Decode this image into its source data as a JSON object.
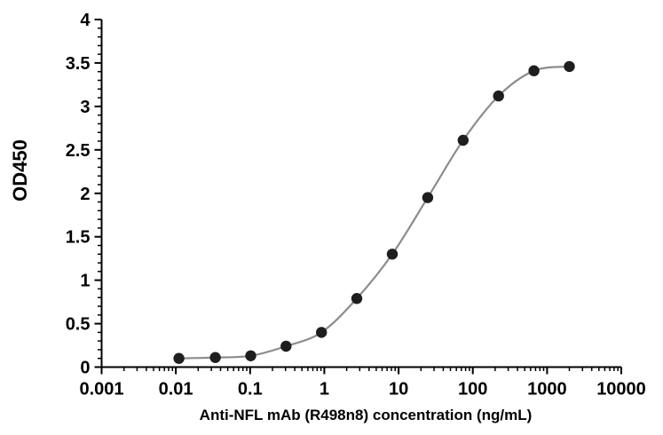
{
  "chart_data": {
    "type": "scatter",
    "title": "",
    "xlabel": "Anti-NFL mAb (R498n8) concentration (ng/mL)",
    "ylabel": "OD450",
    "x_scale": "log10",
    "xlim": [
      0.001,
      10000
    ],
    "ylim": [
      0,
      4
    ],
    "x_tick_values": [
      0.001,
      0.01,
      0.1,
      1,
      10,
      100,
      1000,
      10000
    ],
    "x_tick_labels": [
      "0.001",
      "0.01",
      "0.1",
      "1",
      "10",
      "100",
      "1000",
      "10000"
    ],
    "x_minor_tick_multiples": [
      2,
      3,
      4,
      5,
      6,
      7,
      8,
      9
    ],
    "y_tick_values": [
      0,
      0.5,
      1,
      1.5,
      2,
      2.5,
      3,
      3.5,
      4
    ],
    "y_tick_labels": [
      "0",
      "0.5",
      "1",
      "1.5",
      "2",
      "2.5",
      "3",
      "3.5",
      "4"
    ],
    "y_minor_tick_step": 0.1,
    "grid": false,
    "legend": false,
    "curve_style": "smooth-fit-through-points",
    "x": [
      0.011,
      0.034,
      0.102,
      0.305,
      0.914,
      2.74,
      8.23,
      24.7,
      74.1,
      222,
      667,
      2000
    ],
    "y": [
      0.1,
      0.11,
      0.13,
      0.24,
      0.4,
      0.79,
      1.3,
      1.95,
      2.61,
      3.12,
      3.41,
      3.46
    ],
    "colors": {
      "marker": "#1e1e1e",
      "curve": "#8c8c8c",
      "axis": "#000000",
      "text": "#000000",
      "background": "#ffffff"
    }
  }
}
